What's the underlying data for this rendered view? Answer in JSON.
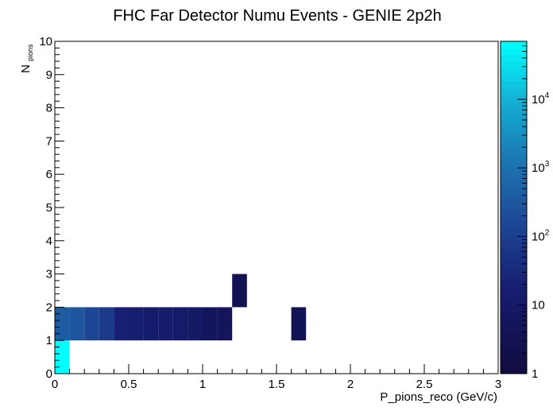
{
  "chart_data": {
    "type": "heatmap",
    "title": "FHC Far Detector Numu Events - GENIE 2p2h",
    "xlabel": "P_pions_reco (GeV/c)",
    "ylabel_main": "N",
    "ylabel_sub": "pions",
    "xlim": [
      0,
      3
    ],
    "ylim": [
      0,
      10
    ],
    "x_ticks": [
      "0",
      "0.5",
      "1",
      "1.5",
      "2",
      "2.5",
      "3"
    ],
    "y_ticks": [
      "0",
      "1",
      "2",
      "3",
      "4",
      "5",
      "6",
      "7",
      "8",
      "9",
      "10"
    ],
    "x_bin_width": 0.1,
    "y_bin_width": 1,
    "colorbar": {
      "scale": "log",
      "min": 1,
      "max": 70000,
      "labels": [
        {
          "base": "1",
          "exp": "",
          "value": 1
        },
        {
          "base": "10",
          "exp": "",
          "value": 10
        },
        {
          "base": "10",
          "exp": "2",
          "value": 100
        },
        {
          "base": "10",
          "exp": "3",
          "value": 1000
        },
        {
          "base": "10",
          "exp": "4",
          "value": 10000
        }
      ]
    },
    "cells": [
      {
        "x": 0.0,
        "y": 0,
        "value": 70000
      },
      {
        "x": 0.0,
        "y": 1,
        "value": 400
      },
      {
        "x": 0.1,
        "y": 1,
        "value": 300
      },
      {
        "x": 0.2,
        "y": 1,
        "value": 150
      },
      {
        "x": 0.3,
        "y": 1,
        "value": 80
      },
      {
        "x": 0.4,
        "y": 1,
        "value": 20
      },
      {
        "x": 0.5,
        "y": 1,
        "value": 18
      },
      {
        "x": 0.6,
        "y": 1,
        "value": 15
      },
      {
        "x": 0.7,
        "y": 1,
        "value": 13
      },
      {
        "x": 0.8,
        "y": 1,
        "value": 12
      },
      {
        "x": 0.9,
        "y": 1,
        "value": 10
      },
      {
        "x": 1.0,
        "y": 1,
        "value": 6
      },
      {
        "x": 1.1,
        "y": 1,
        "value": 5
      },
      {
        "x": 1.6,
        "y": 1,
        "value": 4
      },
      {
        "x": 1.2,
        "y": 2,
        "value": 3
      }
    ]
  }
}
